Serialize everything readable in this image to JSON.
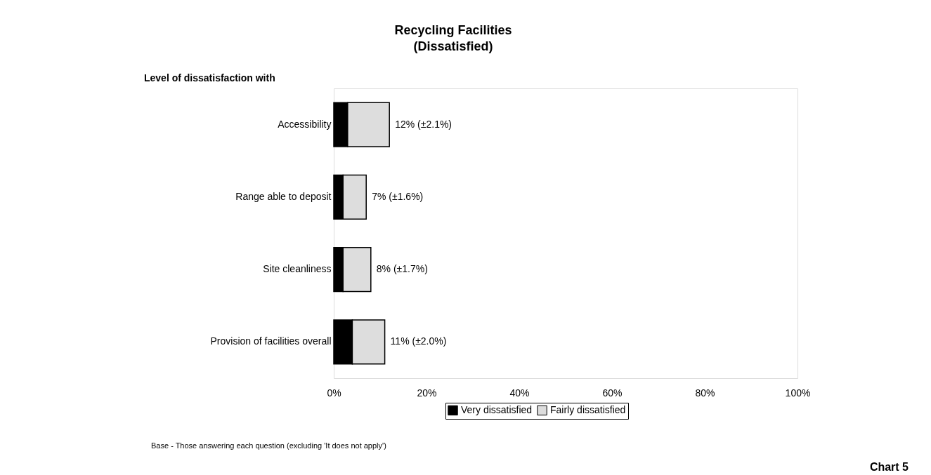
{
  "chart_data": {
    "type": "bar",
    "orientation": "horizontal",
    "stacked": true,
    "title": "Recycling Facilities",
    "subtitle": "(Dissatisfied)",
    "categories": [
      "Accessibility",
      "Range able to deposit",
      "Site cleanliness",
      "Provision of facilities overall"
    ],
    "series": [
      {
        "name": "Very dissatisfied",
        "color": "#000000",
        "values": [
          3,
          2,
          2,
          4
        ]
      },
      {
        "name": "Fairly dissatisfied",
        "color": "#dddddd",
        "values": [
          9,
          5,
          6,
          7
        ]
      }
    ],
    "totals": [
      "12%  (±2.1%)",
      "7% (±1.6%)",
      "8%  (±1.7%)",
      "11%  (±2.0%)"
    ],
    "xlim": [
      0,
      100
    ],
    "xticks": [
      {
        "value": 0,
        "label": "0%"
      },
      {
        "value": 20,
        "label": "20%"
      },
      {
        "value": 40,
        "label": "40%"
      },
      {
        "value": 60,
        "label": "60%"
      },
      {
        "value": 80,
        "label": "80%"
      },
      {
        "value": 100,
        "label": "100%"
      }
    ],
    "grid": false,
    "legend": "bottom",
    "annotations": [
      "Level of dissatisfaction with",
      "Base - Those answering each question (excluding 'It does not apply')",
      "Chart 5"
    ]
  }
}
